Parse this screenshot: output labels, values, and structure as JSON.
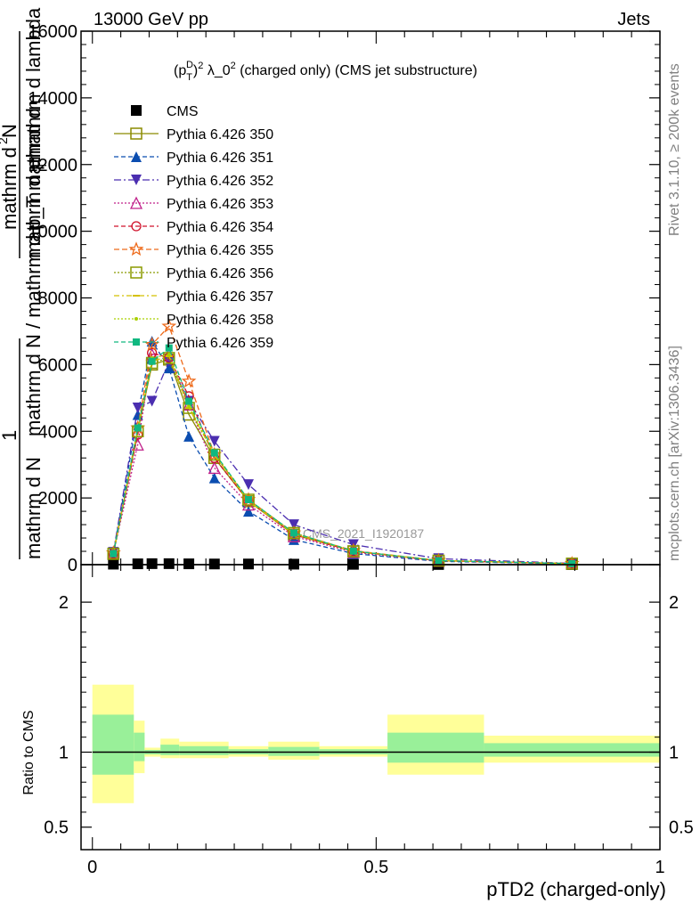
{
  "header": {
    "left": "13000 GeV pp",
    "right": "Jets"
  },
  "side_labels": {
    "rivet": "Rivet 3.1.10, ≥ 200k events",
    "mcplots": "mcplots.cern.ch [arXiv:1306.3436]"
  },
  "chart_data": [
    {
      "type": "line",
      "title": "(p_T^D)^2 λ_0^2 (charged only) (CMS jet substructure)",
      "title_parts": {
        "p": "(p",
        "sup_D": "D",
        "sub_T": "T",
        "rest1": ")",
        "sup_2": "2",
        "lambda": " λ_0",
        "rest2": " (charged only) (CMS jet substructure)"
      },
      "watermark": "CMS_2021_I1920187",
      "ylabel_parts": {
        "one": "1",
        "den": "mathrm d N",
        "num_top": "mathrm d",
        "num_sup": "2",
        "num_rest": "N",
        "den2": "mathrm d p",
        "den2_sub": "T",
        "den2_rest": " mathrm d lambda"
      },
      "ylabel_overlap": "mathrm d N / mathrm d p_T mathrm d",
      "ylim": [
        0,
        16000
      ],
      "yticks": [
        0,
        2000,
        4000,
        6000,
        8000,
        10000,
        12000,
        14000,
        16000
      ],
      "ytick_labels": [
        "0",
        "2000",
        "4000",
        "6000",
        "8000",
        "10000",
        "12000",
        "14000",
        "16000"
      ],
      "xlim": [
        -0.02,
        1.0
      ],
      "x": [
        0.037,
        0.08,
        0.105,
        0.135,
        0.17,
        0.215,
        0.275,
        0.355,
        0.46,
        0.61,
        0.845
      ],
      "series": [
        {
          "name": "CMS",
          "color": "#000000",
          "dash": "",
          "marker": "square-filled",
          "values": [
            15,
            25,
            30,
            30,
            25,
            20,
            20,
            15,
            10,
            5,
            2
          ]
        },
        {
          "name": "Pythia 6.426 350",
          "color": "#8b8b00",
          "dash": "",
          "marker": "square-open",
          "values": [
            320,
            4000,
            6000,
            6150,
            4500,
            3200,
            1900,
            900,
            400,
            120,
            30
          ]
        },
        {
          "name": "Pythia 6.426 351",
          "color": "#0b4db0",
          "dash": "5,3",
          "marker": "triangle-up-filled",
          "values": [
            340,
            4500,
            6700,
            5900,
            3850,
            2600,
            1600,
            750,
            330,
            100,
            25
          ]
        },
        {
          "name": "Pythia 6.426 352",
          "color": "#4b2eb0",
          "dash": "8,3,2,3",
          "marker": "triangle-down-filled",
          "values": [
            370,
            4700,
            4900,
            6100,
            4900,
            3700,
            2400,
            1200,
            600,
            180,
            40
          ]
        },
        {
          "name": "Pythia 6.426 353",
          "color": "#c0208a",
          "dash": "2,2",
          "marker": "triangle-up-open",
          "values": [
            330,
            3600,
            6300,
            6300,
            4800,
            2900,
            1800,
            850,
            370,
            110,
            28
          ]
        },
        {
          "name": "Pythia 6.426 354",
          "color": "#d0102a",
          "dash": "5,3",
          "marker": "circle-open",
          "values": [
            330,
            3900,
            6350,
            6200,
            5050,
            3200,
            1900,
            900,
            400,
            120,
            30
          ]
        },
        {
          "name": "Pythia 6.426 355",
          "color": "#ee6a1a",
          "dash": "6,3",
          "marker": "star-open",
          "values": [
            350,
            4100,
            6600,
            7150,
            5500,
            3300,
            1950,
            950,
            420,
            125,
            32
          ]
        },
        {
          "name": "Pythia 6.426 356",
          "color": "#8b9a00",
          "dash": "2,2",
          "marker": "square-open",
          "values": [
            330,
            4000,
            6050,
            6200,
            4700,
            3300,
            1950,
            950,
            400,
            120,
            30
          ]
        },
        {
          "name": "Pythia 6.426 357",
          "color": "#d4c000",
          "dash": "6,3,2,3",
          "marker": "small-dash",
          "values": [
            320,
            4050,
            6100,
            6250,
            4700,
            3300,
            1900,
            920,
            400,
            120,
            30
          ]
        },
        {
          "name": "Pythia 6.426 358",
          "color": "#aad000",
          "dash": "2,2",
          "marker": "small-dot",
          "values": [
            330,
            4100,
            6200,
            6300,
            4750,
            3350,
            1950,
            950,
            410,
            122,
            31
          ]
        },
        {
          "name": "Pythia 6.426 359",
          "color": "#10b880",
          "dash": "5,3",
          "marker": "square-filled-small",
          "values": [
            330,
            4100,
            6100,
            6500,
            4900,
            3350,
            1950,
            950,
            410,
            122,
            31
          ]
        }
      ]
    },
    {
      "type": "area",
      "ylabel": "Ratio to CMS",
      "xlabel": "pTD2 (charged-only)",
      "ylim": [
        0.35,
        2.25
      ],
      "yticks": [
        0.5,
        1,
        2
      ],
      "ytick_labels": [
        "0.5",
        "1",
        "2"
      ],
      "xlim": [
        -0.02,
        1.0
      ],
      "xticks": [
        0,
        0.5,
        1
      ],
      "xtick_labels": [
        "0",
        "0.5",
        "1"
      ],
      "bins": [
        {
          "x0": 0.0,
          "x1": 0.073,
          "yellow": [
            0.66,
            1.45
          ],
          "green": [
            0.85,
            1.25
          ]
        },
        {
          "x0": 0.073,
          "x1": 0.092,
          "yellow": [
            0.86,
            1.21
          ],
          "green": [
            0.94,
            1.13
          ]
        },
        {
          "x0": 0.092,
          "x1": 0.12,
          "yellow": [
            0.97,
            1.03
          ],
          "green": [
            0.985,
            1.015
          ]
        },
        {
          "x0": 0.12,
          "x1": 0.153,
          "yellow": [
            0.96,
            1.09
          ],
          "green": [
            0.98,
            1.05
          ]
        },
        {
          "x0": 0.153,
          "x1": 0.24,
          "yellow": [
            0.96,
            1.07
          ],
          "green": [
            0.98,
            1.04
          ]
        },
        {
          "x0": 0.24,
          "x1": 0.31,
          "yellow": [
            0.97,
            1.04
          ],
          "green": [
            0.985,
            1.02
          ]
        },
        {
          "x0": 0.31,
          "x1": 0.4,
          "yellow": [
            0.95,
            1.07
          ],
          "green": [
            0.975,
            1.035
          ]
        },
        {
          "x0": 0.4,
          "x1": 0.52,
          "yellow": [
            0.97,
            1.04
          ],
          "green": [
            0.985,
            1.02
          ]
        },
        {
          "x0": 0.52,
          "x1": 0.69,
          "yellow": [
            0.85,
            1.25
          ],
          "green": [
            0.93,
            1.13
          ]
        },
        {
          "x0": 0.69,
          "x1": 1.0,
          "yellow": [
            0.93,
            1.11
          ],
          "green": [
            0.97,
            1.06
          ]
        }
      ],
      "reference": 1
    }
  ]
}
